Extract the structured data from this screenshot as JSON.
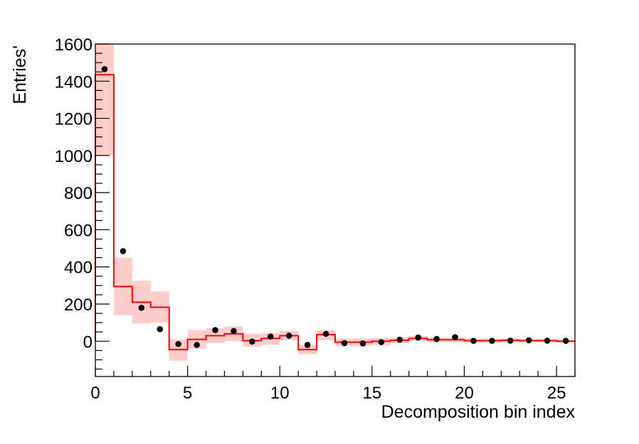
{
  "chart_data": {
    "type": "histogram",
    "title": "",
    "xlabel": "Decomposition bin index",
    "ylabel": "Entries'",
    "xlim": [
      0,
      26
    ],
    "ylim": [
      -190,
      1600
    ],
    "x_ticks": [
      0,
      5,
      10,
      15,
      20,
      25
    ],
    "y_ticks": [
      0,
      200,
      400,
      600,
      800,
      1000,
      1200,
      1400,
      1600
    ],
    "grid": false,
    "legend": "none",
    "bins": [
      {
        "center": 0.5,
        "hist": 1435,
        "band_low": 1000,
        "band_high": 1600,
        "point": 1465
      },
      {
        "center": 1.5,
        "hist": 295,
        "band_low": 140,
        "band_high": 450,
        "point": 485
      },
      {
        "center": 2.5,
        "hist": 210,
        "band_low": 95,
        "band_high": 325,
        "point": 180
      },
      {
        "center": 3.5,
        "hist": 183,
        "band_low": 100,
        "band_high": 268,
        "point": 65
      },
      {
        "center": 4.5,
        "hist": -45,
        "band_low": -105,
        "band_high": 10,
        "point": -15
      },
      {
        "center": 5.5,
        "hist": 10,
        "band_low": -40,
        "band_high": 60,
        "point": -20
      },
      {
        "center": 6.5,
        "hist": 30,
        "band_low": -10,
        "band_high": 70,
        "point": 60
      },
      {
        "center": 7.5,
        "hist": 40,
        "band_low": 0,
        "band_high": 80,
        "point": 55
      },
      {
        "center": 8.5,
        "hist": 3,
        "band_low": -30,
        "band_high": 40,
        "point": -2
      },
      {
        "center": 9.5,
        "hist": 15,
        "band_low": -20,
        "band_high": 45,
        "point": 25
      },
      {
        "center": 10.5,
        "hist": 30,
        "band_low": 5,
        "band_high": 55,
        "point": 30
      },
      {
        "center": 11.5,
        "hist": -45,
        "band_low": -70,
        "band_high": -20,
        "point": -20
      },
      {
        "center": 12.5,
        "hist": 35,
        "band_low": 5,
        "band_high": 60,
        "point": 40
      },
      {
        "center": 13.5,
        "hist": -5,
        "band_low": -25,
        "band_high": 15,
        "point": -10
      },
      {
        "center": 14.5,
        "hist": -5,
        "band_low": -25,
        "band_high": 15,
        "point": -12
      },
      {
        "center": 15.5,
        "hist": 0,
        "band_low": -20,
        "band_high": 18,
        "point": -5
      },
      {
        "center": 16.5,
        "hist": 5,
        "band_low": -10,
        "band_high": 22,
        "point": 8
      },
      {
        "center": 17.5,
        "hist": 15,
        "band_low": 2,
        "band_high": 28,
        "point": 20
      },
      {
        "center": 18.5,
        "hist": 8,
        "band_low": -5,
        "band_high": 20,
        "point": 12
      },
      {
        "center": 19.5,
        "hist": 8,
        "band_low": -5,
        "band_high": 20,
        "point": 22
      },
      {
        "center": 20.5,
        "hist": 3,
        "band_low": -8,
        "band_high": 15,
        "point": 2
      },
      {
        "center": 21.5,
        "hist": 3,
        "band_low": -8,
        "band_high": 15,
        "point": 2
      },
      {
        "center": 22.5,
        "hist": 5,
        "band_low": -6,
        "band_high": 16,
        "point": 3
      },
      {
        "center": 23.5,
        "hist": 3,
        "band_low": -6,
        "band_high": 12,
        "point": 5
      },
      {
        "center": 24.5,
        "hist": 3,
        "band_low": -5,
        "band_high": 12,
        "point": 3
      },
      {
        "center": 25.5,
        "hist": 0,
        "band_low": -6,
        "band_high": 8,
        "point": 2
      }
    ],
    "colors": {
      "hist_line": "#ff0000",
      "band_fill": "#ffcccc",
      "points": "#000000",
      "axis": "#000000"
    }
  }
}
